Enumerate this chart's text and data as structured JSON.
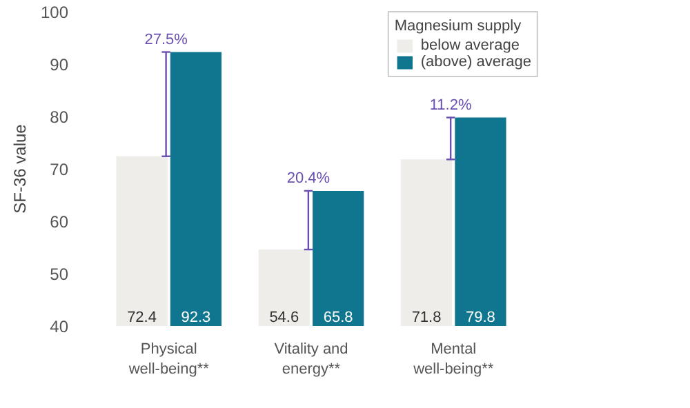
{
  "chart_data": {
    "type": "bar",
    "ylabel": "SF-36 value",
    "legend_title": "Magnesium supply",
    "categories": [
      "Physical\nwell-being**",
      "Vitality and\nenergy**",
      "Mental\nwell-being**"
    ],
    "series": [
      {
        "name": "below average",
        "color": "#eeedea",
        "values": [
          72.4,
          54.6,
          71.8
        ]
      },
      {
        "name": "(above) average",
        "color": "#10768f",
        "values": [
          92.3,
          65.8,
          79.8
        ]
      }
    ],
    "ylim": [
      40,
      100
    ],
    "yticks": [
      40,
      50,
      60,
      70,
      80,
      90,
      100
    ],
    "data_labels": true,
    "grid": false,
    "legend": "top right",
    "annotations": [
      {
        "text": "27.5%",
        "x": "Physical\nwell-being**",
        "y": 92.3
      },
      {
        "text": "20.4%",
        "x": "Vitality and\nenergy**",
        "y": 65.8
      },
      {
        "text": "11.2%",
        "x": "Mental\nwell-being**",
        "y": 79.8
      }
    ]
  }
}
